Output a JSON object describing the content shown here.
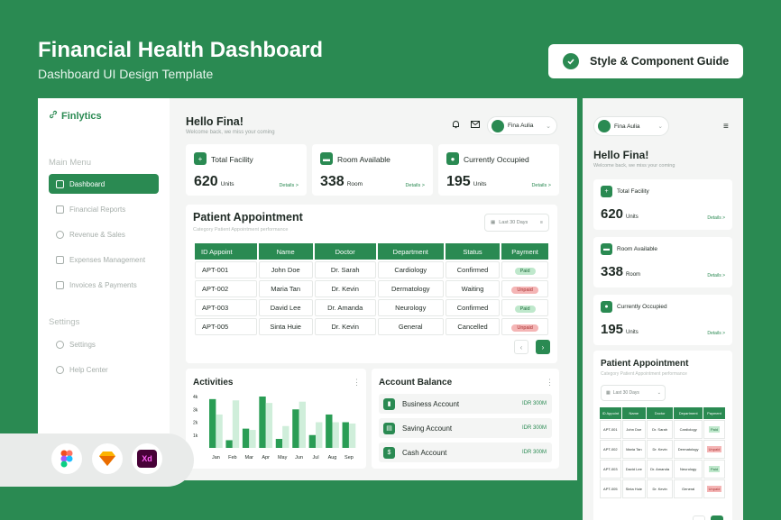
{
  "hero": {
    "title": "Financial Health Dashboard",
    "subtitle": "Dashboard UI Design Template",
    "guide_button": "Style & Component Guide"
  },
  "sidebar": {
    "logo": "Finlytics",
    "menu_label": "Main Menu",
    "items": [
      {
        "label": "Dashboard",
        "icon": "grid-icon"
      },
      {
        "label": "Financial Reports",
        "icon": "bar-chart-icon"
      },
      {
        "label": "Revenue & Sales",
        "icon": "revenue-icon"
      },
      {
        "label": "Expenses Management",
        "icon": "expenses-icon"
      },
      {
        "label": "Invoices & Payments",
        "icon": "invoice-icon"
      }
    ],
    "settings_label": "Settings",
    "settings_items": [
      {
        "label": "Settings",
        "icon": "gear-icon"
      },
      {
        "label": "Help Center",
        "icon": "help-icon"
      }
    ]
  },
  "header": {
    "greeting": "Hello Fina!",
    "welcome": "Welcome back, we miss your coming",
    "user_name": "Fina Aulia"
  },
  "stats": [
    {
      "label": "Total Facility",
      "value": "620",
      "unit": "Units",
      "details": "Details >"
    },
    {
      "label": "Room Available",
      "value": "338",
      "unit": "Room",
      "details": "Details >"
    },
    {
      "label": "Currently Occupied",
      "value": "195",
      "unit": "Units",
      "details": "Details >"
    }
  ],
  "appointments": {
    "title": "Patient Appointment",
    "subtitle": "Category Patient Appointment performance",
    "filter": "Last 30 Days",
    "columns": [
      "ID Appoint",
      "Name",
      "Doctor",
      "Department",
      "Status",
      "Payment"
    ],
    "rows": [
      {
        "id": "APT-001",
        "name": "John Doe",
        "doctor": "Dr. Sarah",
        "department": "Cardiology",
        "status": "Confirmed",
        "payment": "Paid"
      },
      {
        "id": "APT-002",
        "name": "Maria Tan",
        "doctor": "Dr. Kevin",
        "department": "Dermatology",
        "status": "Waiting",
        "payment": "Unpaid"
      },
      {
        "id": "APT-003",
        "name": "David Lee",
        "doctor": "Dr. Amanda",
        "department": "Neurology",
        "status": "Confirmed",
        "payment": "Paid"
      },
      {
        "id": "APT-005",
        "name": "Sinta Huie",
        "doctor": "Dr. Kevin",
        "department": "General",
        "status": "Cancelled",
        "payment": "Unpaid"
      }
    ]
  },
  "activities": {
    "title": "Activities"
  },
  "chart_data": {
    "type": "bar",
    "categories": [
      "Jan",
      "Feb",
      "Mar",
      "Apr",
      "May",
      "Jun",
      "Jul",
      "Aug",
      "Sep"
    ],
    "y_ticks": [
      "4k",
      "3k",
      "2k",
      "1k"
    ],
    "ylim": [
      0,
      4000
    ],
    "series": [
      {
        "values": [
          3800,
          600,
          1500,
          4000,
          700,
          3000,
          1000,
          2600,
          2000
        ]
      },
      {
        "values": [
          2600,
          3700,
          1400,
          3500,
          1700,
          3600,
          2000,
          2000,
          1900
        ]
      }
    ],
    "colors": [
      "#2a9d55",
      "#cfeeda"
    ]
  },
  "balance": {
    "title": "Account Balance",
    "accounts": [
      {
        "name": "Business Account",
        "value": "IDR 300M"
      },
      {
        "name": "Saving Account",
        "value": "IDR 300M"
      },
      {
        "name": "Cash Account",
        "value": "IDR 300M"
      }
    ]
  },
  "mobile": {
    "user_name": "Fina Aulia",
    "greeting": "Hello Fina!",
    "welcome": "Welcome back, we miss your coming",
    "columns": [
      "ID Appoint",
      "Name",
      "Doctor",
      "Department",
      "Payment"
    ],
    "rows": [
      {
        "id": "APT-001",
        "name": "John Doe",
        "doctor": "Dr. Sarah",
        "department": "Cardiology",
        "payment": "Paid"
      },
      {
        "id": "APT-002",
        "name": "Maria Tan",
        "doctor": "Dr. Kevin",
        "department": "Dermatology",
        "payment": "Unpaid"
      },
      {
        "id": "APT-003",
        "name": "David Lee",
        "doctor": "Dr. Amanda",
        "department": "Neurology",
        "payment": "Paid"
      },
      {
        "id": "APT-005",
        "name": "Sinta Huie",
        "doctor": "Dr. Kevin",
        "department": "General",
        "payment": "Unpaid"
      }
    ]
  },
  "colors": {
    "brand": "#2a8a52",
    "paid": "#bfe8cc",
    "unpaid": "#f4b5b5"
  }
}
